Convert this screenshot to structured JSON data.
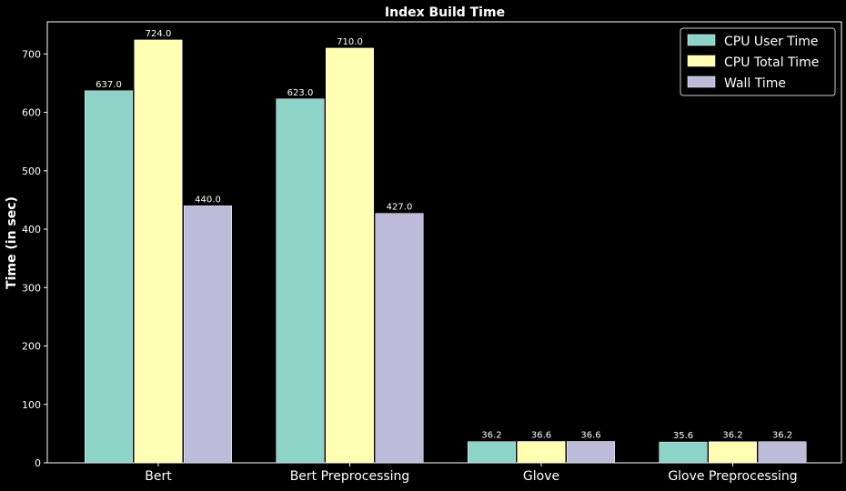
{
  "chart_data": {
    "type": "bar",
    "title": "Index Build Time",
    "ylabel": "Time (in sec)",
    "xlabel": "",
    "ylim": [
      0,
      755
    ],
    "yticks": [
      0,
      100,
      200,
      300,
      400,
      500,
      600,
      700
    ],
    "categories": [
      "Bert",
      "Bert Preprocessing",
      "Glove",
      "Glove Preprocessing"
    ],
    "series": [
      {
        "name": "CPU User Time",
        "color": "#8dd3c7",
        "values": [
          637.0,
          623.0,
          36.2,
          35.6
        ],
        "labels": [
          "637.0",
          "623.0",
          "36.2",
          "35.6"
        ]
      },
      {
        "name": "CPU Total Time",
        "color": "#ffffb3",
        "values": [
          724.0,
          710.0,
          36.6,
          36.2
        ],
        "labels": [
          "724.0",
          "710.0",
          "36.6",
          "36.2"
        ]
      },
      {
        "name": "Wall Time",
        "color": "#bebada",
        "values": [
          440.0,
          427.0,
          36.6,
          36.2
        ],
        "labels": [
          "440.0",
          "427.0",
          "36.6",
          "36.2"
        ]
      }
    ],
    "legend": "top-right",
    "grid": false,
    "background": "#000000",
    "axis_color": "#ffffff"
  }
}
